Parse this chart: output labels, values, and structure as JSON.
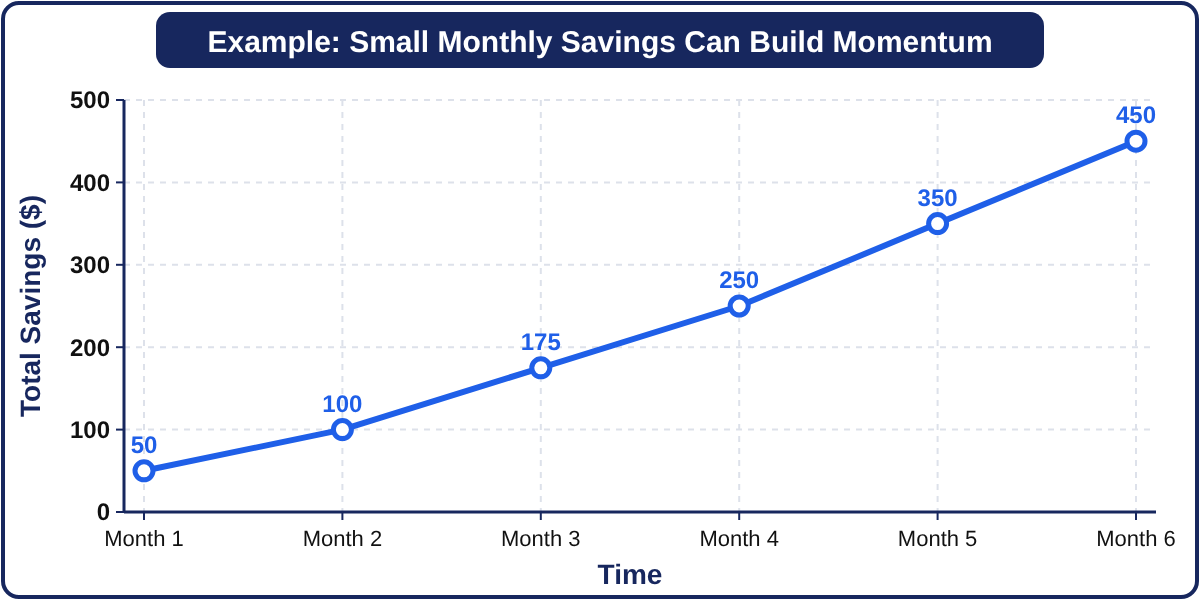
{
  "chart_data": {
    "type": "line",
    "title": "Example: Small Monthly Savings Can Build Momentum",
    "xlabel": "Time",
    "ylabel": "Total Savings ($)",
    "categories": [
      "Month 1",
      "Month 2",
      "Month 3",
      "Month 4",
      "Month 5",
      "Month 6"
    ],
    "series": [
      {
        "color": "#1f5fe8",
        "values": [
          50,
          100,
          175,
          250,
          350,
          450
        ]
      }
    ],
    "ylim": [
      0,
      500
    ],
    "yticks": [
      0,
      100,
      200,
      300,
      400,
      500
    ],
    "grid": true,
    "marker": "circle",
    "line_style": "solid",
    "data_labels": true
  }
}
